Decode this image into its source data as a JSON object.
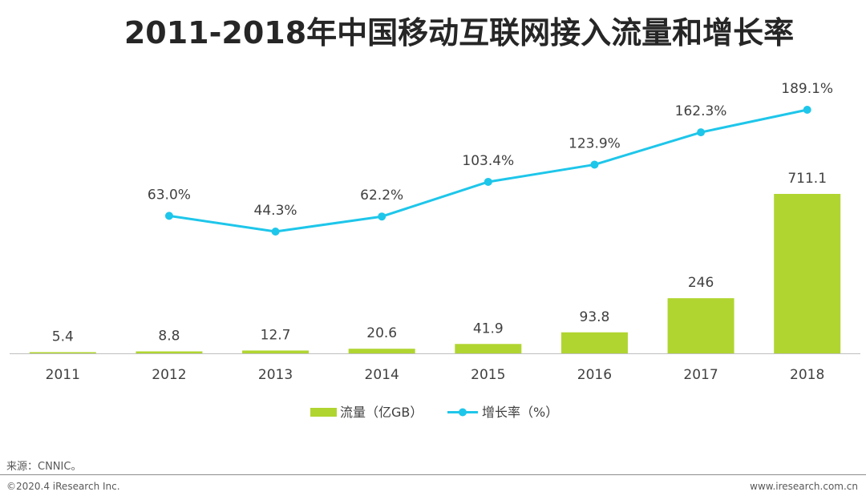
{
  "chart_data": {
    "type": "bar+line",
    "title": "2011-2018年中国移动互联网接入流量和增长率",
    "categories": [
      "2011",
      "2012",
      "2013",
      "2014",
      "2015",
      "2016",
      "2017",
      "2018"
    ],
    "series": [
      {
        "name": "流量（亿GB）",
        "type": "bar",
        "values": [
          5.4,
          8.8,
          12.7,
          20.6,
          41.9,
          93.8,
          246,
          711.1
        ],
        "labels": [
          "5.4",
          "8.8",
          "12.7",
          "20.6",
          "41.9",
          "93.8",
          "246",
          "711.1"
        ],
        "color": "#b0d530"
      },
      {
        "name": "增长率（%）",
        "type": "line",
        "values": [
          null,
          63.0,
          44.3,
          62.2,
          103.4,
          123.9,
          162.3,
          189.1
        ],
        "labels": [
          "",
          "63.0%",
          "44.3%",
          "62.2%",
          "103.4%",
          "123.9%",
          "162.3%",
          "189.1%"
        ],
        "color": "#1ec6ea"
      }
    ],
    "legend_position": "bottom",
    "grid": false
  },
  "footer": {
    "source": "来源：CNNIC。",
    "copyright": "©2020.4 iResearch Inc.",
    "website": "www.iresearch.com.cn"
  }
}
